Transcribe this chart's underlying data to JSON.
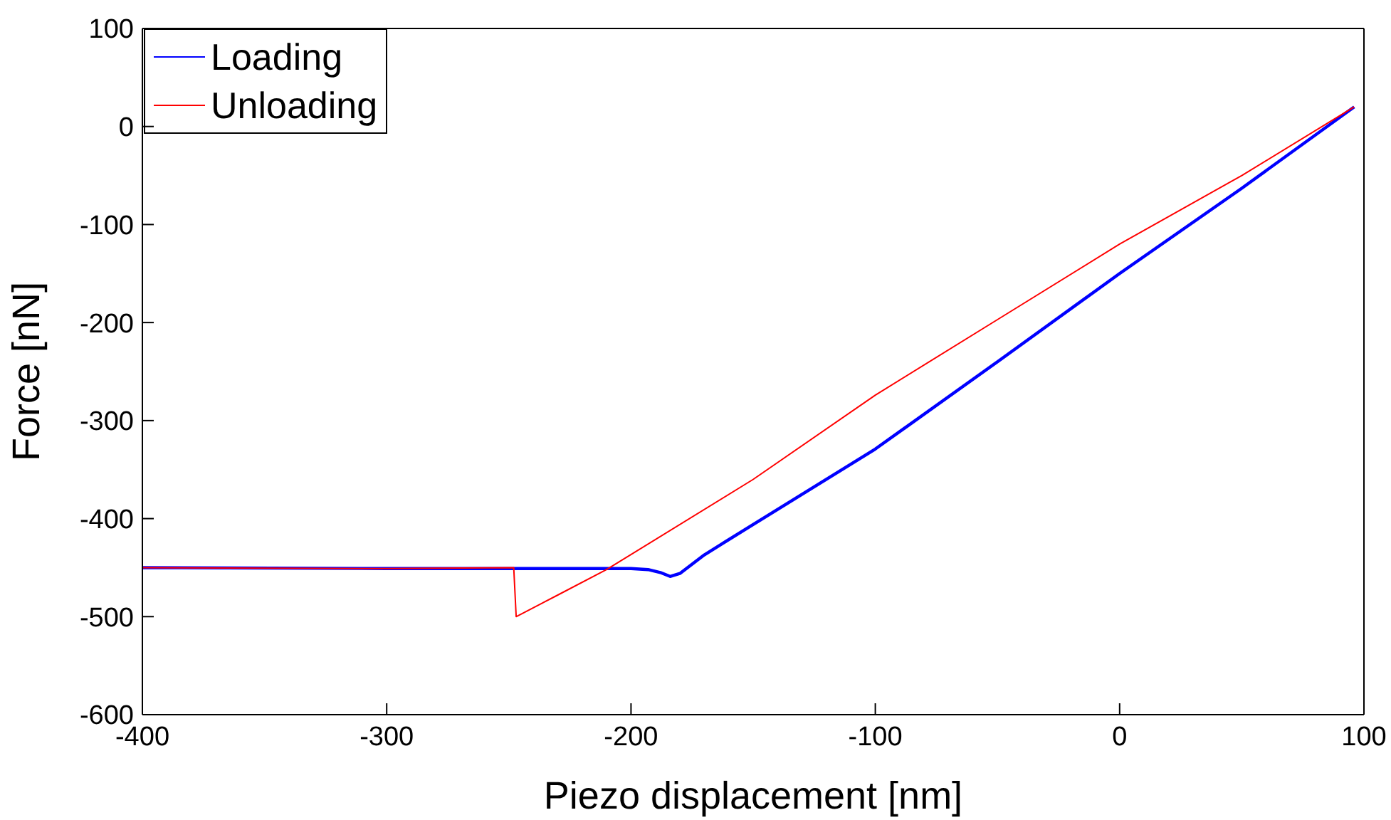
{
  "chart_data": {
    "type": "line",
    "xlabel": "Piezo displacement [nm]",
    "ylabel": "Force [nN]",
    "xlim": [
      -400,
      100
    ],
    "xticks": [
      -400,
      -300,
      -200,
      -100,
      0,
      100
    ],
    "ylim": [
      -600,
      100
    ],
    "yticks": [
      -600,
      -500,
      -400,
      -300,
      -200,
      -100,
      0,
      100
    ],
    "legend": "top left",
    "marker": "none",
    "line_style": "solid",
    "series": [
      {
        "name": "Loading",
        "color": "#0000ff",
        "x": [
          -400,
          -300,
          -250,
          -200,
          -193,
          -188,
          -184,
          -180,
          -170,
          -150,
          -100,
          -50,
          0,
          50,
          96
        ],
        "values": [
          -450,
          -451,
          -451,
          -451,
          -452,
          -455,
          -459,
          -456,
          -437,
          -406,
          -329,
          -240,
          -150,
          -63,
          20
        ]
      },
      {
        "name": "Unloading",
        "color": "#ff0000",
        "x": [
          -400,
          -300,
          -248,
          -247,
          -230,
          -210,
          -150,
          -100,
          -50,
          0,
          50,
          96
        ],
        "values": [
          -450,
          -451,
          -450,
          -500,
          -478,
          -452,
          -360,
          -274,
          -197,
          -120,
          -50,
          20
        ]
      }
    ]
  }
}
